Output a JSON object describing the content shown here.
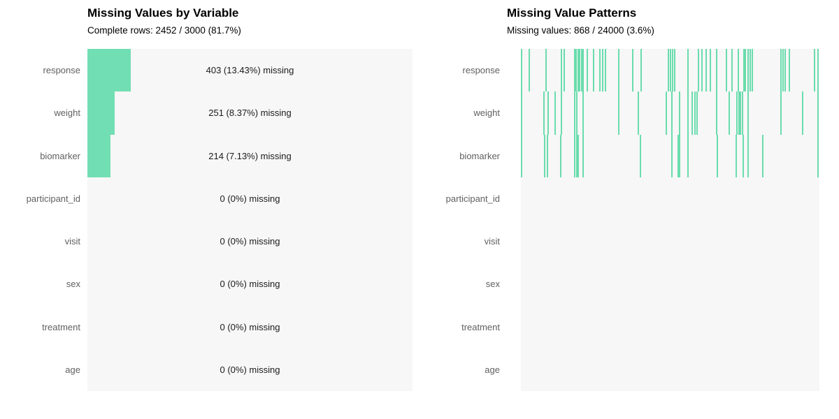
{
  "colors": {
    "bar": "#72deb3",
    "tick": "#6adcad",
    "panel_bg": "#f7f7f7",
    "label": "#606060",
    "annotation": "#1a1a1a",
    "title": "#000000",
    "page_bg": "#ffffff"
  },
  "chart_data": [
    {
      "type": "bar",
      "orientation": "horizontal",
      "title": "Missing Values by Variable",
      "subtitle": "Complete rows: 2452 / 3000 (81.7%)",
      "categories": [
        "response",
        "weight",
        "biomarker",
        "participant_id",
        "visit",
        "sex",
        "treatment",
        "age"
      ],
      "missing_counts": [
        403,
        251,
        214,
        0,
        0,
        0,
        0,
        0
      ],
      "missing_pct": [
        13.43,
        8.37,
        7.13,
        0,
        0,
        0,
        0,
        0
      ],
      "bar_labels": [
        "403 (13.43%) missing",
        "251 (8.37%) missing",
        "214 (7.13%) missing",
        "0 (0%) missing",
        "0 (0%) missing",
        "0 (0%) missing",
        "0 (0%) missing",
        "0 (0%) missing"
      ],
      "xlim": [
        0,
        100
      ],
      "grid": false,
      "legend": false
    },
    {
      "type": "heatmap",
      "subtype": "missingness-pattern-rug",
      "title": "Missing Value Patterns",
      "subtitle": "Missing values: 868 / 24000 (3.6%)",
      "categories": [
        "response",
        "weight",
        "biomarker",
        "participant_id",
        "visit",
        "sex",
        "treatment",
        "age"
      ],
      "x_range_fraction": [
        0,
        1
      ],
      "grid": false,
      "legend": false,
      "missing_marks_fraction_x": {
        "response": [
          0.003,
          0.027,
          0.085,
          0.136,
          0.145,
          0.181,
          0.186,
          0.191,
          0.197,
          0.203,
          0.208,
          0.222,
          0.244,
          0.265,
          0.273,
          0.283,
          0.329,
          0.375,
          0.402,
          0.494,
          0.501,
          0.508,
          0.515,
          0.559,
          0.596,
          0.606,
          0.62,
          0.634,
          0.655,
          0.688,
          0.707,
          0.729,
          0.746,
          0.752,
          0.76,
          0.769,
          0.776,
          0.872,
          0.878,
          0.886,
          0.899,
          0.983,
          0.995
        ],
        "weight": [
          0.003,
          0.077,
          0.091,
          0.114,
          0.136,
          0.181,
          0.187,
          0.208,
          0.329,
          0.393,
          0.486,
          0.505,
          0.531,
          0.559,
          0.573,
          0.582,
          0.59,
          0.655,
          0.698,
          0.723,
          0.73,
          0.735,
          0.743,
          0.76,
          0.871,
          0.944,
          0.995
        ],
        "biomarker": [
          0.003,
          0.08,
          0.089,
          0.134,
          0.181,
          0.187,
          0.192,
          0.208,
          0.401,
          0.505,
          0.526,
          0.532,
          0.559,
          0.657,
          0.721,
          0.745,
          0.762,
          0.81,
          0.995
        ],
        "participant_id": [],
        "visit": [],
        "sex": [],
        "treatment": [],
        "age": []
      }
    }
  ]
}
